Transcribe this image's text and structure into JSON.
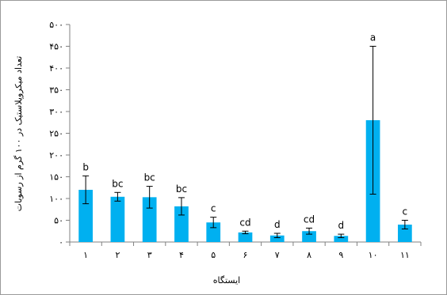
{
  "chart_data": {
    "type": "bar",
    "xlabel": "ایستگاه",
    "ylabel": "تعداد میکروپلاستیک در ۱۰۰ گرم از رسوبات",
    "ylim": [
      0,
      500
    ],
    "yticks": [
      {
        "value": 0,
        "label": "۰"
      },
      {
        "value": 50,
        "label": "۵۰"
      },
      {
        "value": 100,
        "label": "۱۰۰"
      },
      {
        "value": 150,
        "label": "۱۵۰"
      },
      {
        "value": 200,
        "label": "۲۰۰"
      },
      {
        "value": 250,
        "label": "۲۵۰"
      },
      {
        "value": 300,
        "label": "۳۰۰"
      },
      {
        "value": 350,
        "label": "۳۵۰"
      },
      {
        "value": 400,
        "label": "۴۰۰"
      },
      {
        "value": 450,
        "label": "۴۵۰"
      },
      {
        "value": 500,
        "label": "۵۰۰"
      }
    ],
    "categories": [
      "۱",
      "۲",
      "۳",
      "۴",
      "۵",
      "۶",
      "۷",
      "۸",
      "۹",
      "۱۰",
      "۱۱"
    ],
    "values": [
      120,
      104,
      103,
      82,
      45,
      22,
      15,
      25,
      14,
      280,
      40
    ],
    "errors": [
      32,
      10,
      25,
      20,
      12,
      3,
      5,
      7,
      4,
      170,
      10
    ],
    "significance_letters": [
      "b",
      "bc",
      "bc",
      "bc",
      "c",
      "cd",
      "d",
      "cd",
      "d",
      "a",
      "c"
    ],
    "bar_color": "#00b0f0",
    "grid": false
  }
}
